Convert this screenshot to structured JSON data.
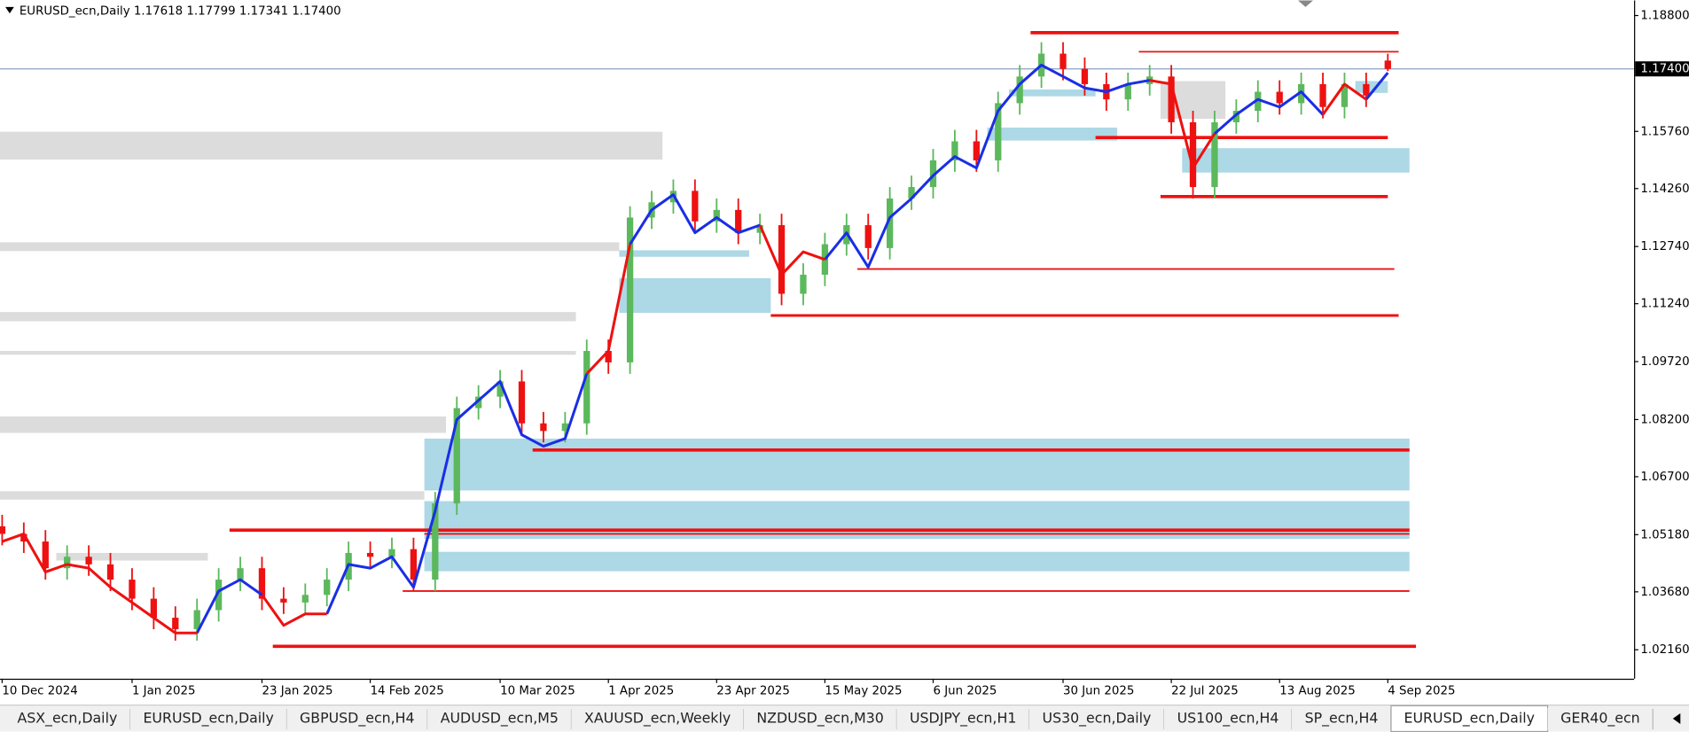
{
  "chart_data": {
    "type": "candlestick",
    "title": "EURUSD_ecn,Daily  1.17618 1.17799 1.17341 1.17400",
    "categories": [
      "10 Dec 2024",
      null,
      null,
      null,
      null,
      null,
      "1 Jan 2025",
      null,
      null,
      null,
      null,
      null,
      "23 Jan 2025",
      null,
      null,
      null,
      null,
      "14 Feb 2025",
      null,
      null,
      null,
      null,
      null,
      "10 Mar 2025",
      null,
      null,
      null,
      null,
      "1 Apr 2025",
      null,
      null,
      null,
      null,
      "23 Apr 2025",
      null,
      null,
      null,
      null,
      "15 May 2025",
      null,
      null,
      null,
      null,
      "6 Jun 2025",
      null,
      null,
      null,
      null,
      null,
      "30 Jun 2025",
      null,
      null,
      null,
      null,
      "22 Jul 2025",
      null,
      null,
      null,
      null,
      "13 Aug 2025",
      null,
      null,
      null,
      null,
      "4 Sep 2025"
    ],
    "open": [
      1.054,
      1.052,
      1.05,
      1.043,
      1.046,
      1.044,
      1.04,
      1.035,
      1.03,
      1.027,
      1.032,
      1.04,
      1.043,
      1.035,
      1.034,
      1.036,
      1.04,
      1.047,
      1.046,
      1.048,
      1.04,
      1.06,
      1.085,
      1.088,
      1.092,
      1.081,
      1.079,
      1.081,
      1.1,
      1.097,
      1.135,
      1.139,
      1.142,
      1.134,
      1.137,
      1.131,
      1.133,
      1.115,
      1.12,
      1.128,
      1.133,
      1.127,
      1.14,
      1.143,
      1.15,
      1.155,
      1.15,
      1.165,
      1.172,
      1.178,
      1.174,
      1.17,
      1.166,
      1.17,
      1.172,
      1.16,
      1.143,
      1.16,
      1.163,
      1.168,
      1.165,
      1.17,
      1.164,
      1.17,
      1.17618
    ],
    "high": [
      1.057,
      1.055,
      1.053,
      1.049,
      1.049,
      1.047,
      1.043,
      1.038,
      1.033,
      1.035,
      1.043,
      1.046,
      1.046,
      1.038,
      1.039,
      1.043,
      1.05,
      1.05,
      1.051,
      1.051,
      1.063,
      1.088,
      1.091,
      1.095,
      1.095,
      1.084,
      1.084,
      1.103,
      1.103,
      1.138,
      1.142,
      1.145,
      1.145,
      1.14,
      1.14,
      1.136,
      1.136,
      1.123,
      1.131,
      1.136,
      1.136,
      1.143,
      1.146,
      1.153,
      1.158,
      1.158,
      1.168,
      1.175,
      1.181,
      1.181,
      1.177,
      1.173,
      1.173,
      1.175,
      1.175,
      1.163,
      1.163,
      1.166,
      1.171,
      1.171,
      1.173,
      1.173,
      1.173,
      1.173,
      1.17799
    ],
    "low": [
      1.049,
      1.047,
      1.04,
      1.04,
      1.041,
      1.037,
      1.032,
      1.027,
      1.024,
      1.024,
      1.029,
      1.037,
      1.032,
      1.031,
      1.031,
      1.033,
      1.037,
      1.043,
      1.043,
      1.037,
      1.037,
      1.057,
      1.082,
      1.085,
      1.078,
      1.076,
      1.076,
      1.078,
      1.094,
      1.094,
      1.132,
      1.136,
      1.131,
      1.131,
      1.128,
      1.128,
      1.112,
      1.112,
      1.117,
      1.125,
      1.124,
      1.124,
      1.137,
      1.14,
      1.147,
      1.147,
      1.147,
      1.162,
      1.169,
      1.171,
      1.167,
      1.163,
      1.163,
      1.167,
      1.157,
      1.14,
      1.14,
      1.157,
      1.16,
      1.162,
      1.162,
      1.161,
      1.161,
      1.164,
      1.17341
    ],
    "close": [
      1.052,
      1.05,
      1.043,
      1.046,
      1.044,
      1.04,
      1.035,
      1.03,
      1.027,
      1.032,
      1.04,
      1.043,
      1.035,
      1.034,
      1.036,
      1.04,
      1.047,
      1.046,
      1.048,
      1.04,
      1.06,
      1.085,
      1.088,
      1.092,
      1.081,
      1.079,
      1.081,
      1.1,
      1.097,
      1.135,
      1.139,
      1.142,
      1.134,
      1.137,
      1.131,
      1.133,
      1.115,
      1.12,
      1.128,
      1.133,
      1.127,
      1.14,
      1.143,
      1.15,
      1.155,
      1.15,
      1.165,
      1.172,
      1.178,
      1.174,
      1.17,
      1.166,
      1.17,
      1.172,
      1.16,
      1.143,
      1.16,
      1.163,
      1.168,
      1.165,
      1.17,
      1.164,
      1.17,
      1.167,
      1.174
    ],
    "up_color": "#5cb85c",
    "down_color": "#ee1111",
    "ylim": [
      1.01399,
      1.19195
    ],
    "yticks": [
      {
        "value": 1.188,
        "label": "1.18800"
      },
      {
        "value": 1.1576,
        "label": "1.15760"
      },
      {
        "value": 1.1426,
        "label": "1.14260"
      },
      {
        "value": 1.1274,
        "label": "1.12740"
      },
      {
        "value": 1.1124,
        "label": "1.11240"
      },
      {
        "value": 1.0972,
        "label": "1.09720"
      },
      {
        "value": 1.082,
        "label": "1.08200"
      },
      {
        "value": 1.067,
        "label": "1.06700"
      },
      {
        "value": 1.0518,
        "label": "1.05180"
      },
      {
        "value": 1.0368,
        "label": "1.03680"
      },
      {
        "value": 1.0216,
        "label": "1.02160"
      }
    ],
    "current_price": {
      "value": 1.174,
      "label": "1.17400"
    },
    "trail": {
      "values": [
        1.05,
        1.052,
        1.042,
        1.044,
        1.043,
        1.038,
        1.034,
        1.03,
        1.026,
        1.026,
        1.037,
        1.04,
        1.036,
        1.028,
        1.031,
        1.031,
        1.044,
        1.043,
        1.046,
        1.038,
        1.058,
        1.082,
        1.087,
        1.092,
        1.078,
        1.075,
        1.077,
        1.094,
        1.1,
        1.128,
        1.137,
        1.141,
        1.131,
        1.135,
        1.131,
        1.133,
        1.12,
        1.126,
        1.124,
        1.131,
        1.122,
        1.135,
        1.14,
        1.146,
        1.151,
        1.148,
        1.163,
        1.17,
        1.175,
        1.172,
        1.169,
        1.168,
        1.17,
        1.171,
        1.17,
        1.148,
        1.157,
        1.162,
        1.166,
        1.164,
        1.168,
        1.162,
        1.17,
        1.166,
        1.173
      ],
      "up_color": "#1a2ee6",
      "down_color": "#ee1111",
      "up_ranges": [
        [
          9,
          12
        ],
        [
          15,
          27
        ],
        [
          29,
          35
        ],
        [
          38,
          53
        ],
        [
          56,
          61
        ],
        [
          63,
          64
        ]
      ],
      "down_ranges": [
        [
          0,
          9
        ],
        [
          12,
          15
        ],
        [
          27,
          29
        ],
        [
          35,
          38
        ],
        [
          53,
          56
        ],
        [
          61,
          63
        ]
      ]
    },
    "levels": [
      {
        "price": 1.1835,
        "from": 48,
        "to": 65,
        "width": 3
      },
      {
        "price": 1.1785,
        "from": 53,
        "to": 65,
        "width": 1.5
      },
      {
        "price": 1.156,
        "from": 51,
        "to": 64.5,
        "width": 3
      },
      {
        "price": 1.1405,
        "from": 54,
        "to": 64.5,
        "width": 3
      },
      {
        "price": 1.1215,
        "from": 40,
        "to": 64.8,
        "width": 1.5
      },
      {
        "price": 1.1093,
        "from": 36,
        "to": 65,
        "width": 2.5
      },
      {
        "price": 1.074,
        "from": 25,
        "to": 65.5,
        "width": 3
      },
      {
        "price": 1.053,
        "from": 11,
        "to": 65.5,
        "width": 3
      },
      {
        "price": 1.052,
        "from": 20,
        "to": 65.5,
        "width": 1.5
      },
      {
        "price": 1.037,
        "from": 19,
        "to": 65.5,
        "width": 1.5
      },
      {
        "price": 1.0225,
        "from": 13,
        "to": 65.8,
        "width": 3
      }
    ],
    "level_color": "#ee1111",
    "zones": [
      {
        "top": 1.1575,
        "bottom": 1.1502,
        "from": 0,
        "to": 31,
        "color": "#dcdcdc"
      },
      {
        "top": 1.1285,
        "bottom": 1.1262,
        "from": 0,
        "to": 29,
        "color": "#dcdcdc"
      },
      {
        "top": 1.1102,
        "bottom": 1.1078,
        "from": 0,
        "to": 27,
        "color": "#dcdcdc"
      },
      {
        "top": 1.1,
        "bottom": 1.099,
        "from": 0,
        "to": 27,
        "color": "#dcdcdc"
      },
      {
        "top": 1.0828,
        "bottom": 1.0785,
        "from": 0,
        "to": 21,
        "color": "#dcdcdc"
      },
      {
        "top": 1.0632,
        "bottom": 1.061,
        "from": 0,
        "to": 20,
        "color": "#dcdcdc"
      },
      {
        "top": 1.047,
        "bottom": 1.045,
        "from": 3,
        "to": 10,
        "color": "#dcdcdc"
      },
      {
        "top": 1.1708,
        "bottom": 1.1609,
        "from": 54,
        "to": 57,
        "color": "#dcdcdc"
      },
      {
        "top": 1.077,
        "bottom": 1.0634,
        "from": 20,
        "to": 65.5,
        "color": "#add8e6"
      },
      {
        "top": 1.0606,
        "bottom": 1.0507,
        "from": 20,
        "to": 65.5,
        "color": "#add8e6"
      },
      {
        "top": 1.0473,
        "bottom": 1.0422,
        "from": 20,
        "to": 65.5,
        "color": "#add8e6"
      },
      {
        "top": 1.1191,
        "bottom": 1.11,
        "from": 29,
        "to": 36,
        "color": "#add8e6"
      },
      {
        "top": 1.1264,
        "bottom": 1.1247,
        "from": 29,
        "to": 35,
        "color": "#add8e6"
      },
      {
        "top": 1.1532,
        "bottom": 1.1468,
        "from": 55,
        "to": 65.5,
        "color": "#add8e6"
      },
      {
        "top": 1.1708,
        "bottom": 1.1677,
        "from": 63,
        "to": 64.5,
        "color": "#add8e6"
      },
      {
        "top": 1.1586,
        "bottom": 1.1552,
        "from": 46,
        "to": 52,
        "color": "#add8e6"
      },
      {
        "top": 1.1686,
        "bottom": 1.1668,
        "from": 47,
        "to": 51,
        "color": "#add8e6"
      }
    ]
  },
  "tabs": [
    "ASX_ecn,Daily",
    "EURUSD_ecn,Daily",
    "GBPUSD_ecn,H4",
    "AUDUSD_ecn,M5",
    "XAUUSD_ecn,Weekly",
    "NZDUSD_ecn,M30",
    "USDJPY_ecn,H1",
    "US30_ecn,Daily",
    "US100_ecn,H4",
    "SP_ecn,H4",
    "EURUSD_ecn,Daily",
    "GER40_ecn"
  ],
  "active_tab": 10
}
